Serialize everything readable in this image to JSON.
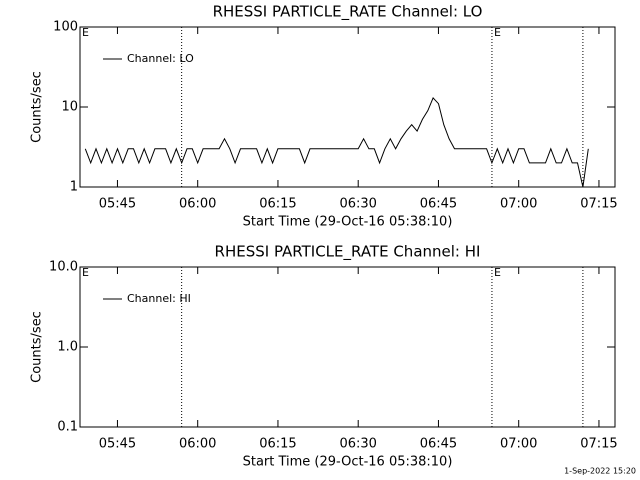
{
  "chart_data": [
    {
      "type": "line",
      "title": "RHESSI PARTICLE_RATE Channel: LO",
      "xlabel": "Start Time (29-Oct-16 05:38:10)",
      "ylabel": "Counts/sec",
      "log_y": true,
      "legend": "upper left",
      "xlim": [
        "05:38",
        "07:18"
      ],
      "ylim": [
        1,
        100
      ],
      "xticks": [
        "05:45",
        "06:00",
        "06:15",
        "06:30",
        "06:45",
        "07:00",
        "07:15"
      ],
      "yticks": [
        1,
        10,
        100
      ],
      "vlines": [
        "05:57",
        "06:55",
        "07:12"
      ],
      "annotations": [
        {
          "x": "05:38",
          "label": "E"
        },
        {
          "x": "06:55",
          "label": "E"
        }
      ],
      "series": [
        {
          "name": "Channel: LO",
          "color": "#000000",
          "x": [
            "05:39",
            "05:40",
            "05:41",
            "05:42",
            "05:43",
            "05:44",
            "05:45",
            "05:46",
            "05:47",
            "05:48",
            "05:49",
            "05:50",
            "05:51",
            "05:52",
            "05:53",
            "05:54",
            "05:55",
            "05:56",
            "05:57",
            "05:58",
            "05:59",
            "06:00",
            "06:01",
            "06:02",
            "06:03",
            "06:04",
            "06:05",
            "06:06",
            "06:07",
            "06:08",
            "06:09",
            "06:10",
            "06:11",
            "06:12",
            "06:13",
            "06:14",
            "06:15",
            "06:16",
            "06:17",
            "06:18",
            "06:19",
            "06:20",
            "06:21",
            "06:22",
            "06:23",
            "06:24",
            "06:25",
            "06:26",
            "06:27",
            "06:28",
            "06:29",
            "06:30",
            "06:31",
            "06:32",
            "06:33",
            "06:34",
            "06:35",
            "06:36",
            "06:37",
            "06:38",
            "06:39",
            "06:40",
            "06:41",
            "06:42",
            "06:43",
            "06:44",
            "06:45",
            "06:46",
            "06:47",
            "06:48",
            "06:49",
            "06:50",
            "06:51",
            "06:52",
            "06:53",
            "06:54",
            "06:55",
            "06:56",
            "06:57",
            "06:58",
            "06:59",
            "07:00",
            "07:01",
            "07:02",
            "07:03",
            "07:04",
            "07:05",
            "07:06",
            "07:07",
            "07:08",
            "07:09",
            "07:10",
            "07:11",
            "07:12",
            "07:13"
          ],
          "values": [
            3,
            2,
            3,
            2,
            3,
            2,
            3,
            2,
            3,
            3,
            2,
            3,
            2,
            3,
            3,
            3,
            2,
            3,
            2,
            3,
            3,
            2,
            3,
            3,
            3,
            3,
            4,
            3,
            2,
            3,
            3,
            3,
            3,
            2,
            3,
            2,
            3,
            3,
            3,
            3,
            3,
            2,
            3,
            3,
            3,
            3,
            3,
            3,
            3,
            3,
            3,
            3,
            4,
            3,
            3,
            2,
            3,
            4,
            3,
            4,
            5,
            6,
            5,
            7,
            9,
            13,
            11,
            6,
            4,
            3,
            3,
            3,
            3,
            3,
            3,
            3,
            2,
            3,
            2,
            3,
            2,
            3,
            3,
            2,
            2,
            2,
            2,
            3,
            2,
            2,
            3,
            2,
            2,
            1,
            3
          ]
        }
      ]
    },
    {
      "type": "line",
      "title": "RHESSI PARTICLE_RATE Channel: HI",
      "xlabel": "Start Time (29-Oct-16 05:38:10)",
      "ylabel": "Counts/sec",
      "log_y": true,
      "legend": "upper left",
      "xlim": [
        "05:38",
        "07:18"
      ],
      "ylim": [
        0.1,
        10
      ],
      "xticks": [
        "05:45",
        "06:00",
        "06:15",
        "06:30",
        "06:45",
        "07:00",
        "07:15"
      ],
      "yticks": [
        {
          "value": 0.1,
          "label": "0.1"
        },
        {
          "value": 1,
          "label": "1.0"
        },
        {
          "value": 10,
          "label": "10.0"
        }
      ],
      "vlines": [
        "05:57",
        "06:55",
        "07:12"
      ],
      "annotations": [
        {
          "x": "05:38",
          "label": "E"
        },
        {
          "x": "06:55",
          "label": "E"
        }
      ],
      "series": [
        {
          "name": "Channel: HI",
          "color": "#000000",
          "x": [],
          "values": []
        }
      ]
    }
  ],
  "footer": "1-Sep-2022 15:20"
}
